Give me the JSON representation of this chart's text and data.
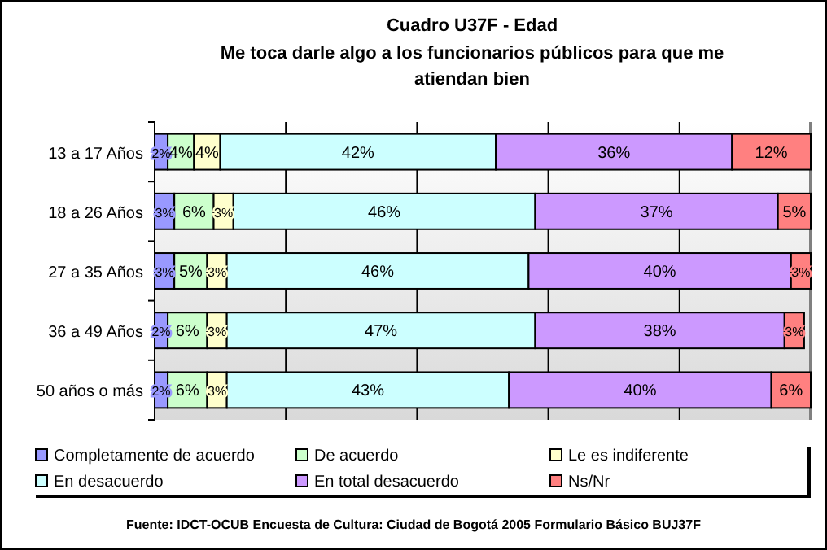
{
  "chart_data": {
    "type": "bar",
    "orientation": "horizontal",
    "stacked": true,
    "title": "Cuadro U37F - Edad",
    "subtitle": "Me toca darle algo a los funcionarios públicos para que me atiendan bien",
    "categories": [
      "13 a 17 Años",
      "18 a 26 Años",
      "27 a 35 Años",
      "36 a 49 Años",
      "50 años o más"
    ],
    "series": [
      {
        "name": "Completamente de acuerdo",
        "color": "#9999ff",
        "values": [
          2,
          3,
          3,
          2,
          2
        ],
        "value_labels": [
          "2%",
          "3%",
          "3%",
          "2%",
          "2%"
        ]
      },
      {
        "name": "De acuerdo",
        "color": "#ccffcc",
        "values": [
          4,
          6,
          5,
          6,
          6
        ],
        "value_labels": [
          "4%",
          "6%",
          "5%",
          "6%",
          "6%"
        ]
      },
      {
        "name": "Le es indiferente",
        "color": "#ffffcc",
        "values": [
          4,
          3,
          3,
          3,
          3
        ],
        "value_labels": [
          "4%",
          "3%",
          "3%",
          "3%",
          "3%"
        ]
      },
      {
        "name": "En desacuerdo",
        "color": "#ccffff",
        "values": [
          42,
          46,
          46,
          47,
          43
        ],
        "value_labels": [
          "42%",
          "46%",
          "46%",
          "47%",
          "43%"
        ]
      },
      {
        "name": "En total desacuerdo",
        "color": "#cc99ff",
        "values": [
          36,
          37,
          40,
          38,
          40
        ],
        "value_labels": [
          "36%",
          "37%",
          "40%",
          "38%",
          "40%"
        ]
      },
      {
        "name": "Ns/Nr",
        "color": "#ff8080",
        "values": [
          12,
          5,
          3,
          3,
          6
        ],
        "value_labels": [
          "12%",
          "5%",
          "3%",
          "3%",
          "6%"
        ]
      }
    ],
    "xlim": [
      0,
      100
    ],
    "xticks": [
      {
        "value": 0,
        "label": null
      },
      {
        "value": 20,
        "label": null
      },
      {
        "value": 40,
        "label": null
      },
      {
        "value": 60,
        "label": null
      },
      {
        "value": 80,
        "label": null
      },
      {
        "value": 100,
        "label": null
      }
    ],
    "tick_labels": "y",
    "grid": "x",
    "legend": "bottom",
    "data_labels": true,
    "annotations": [
      "Fuente: IDCT-OCUB Encuesta de Cultura: Ciudad de Bogotá 2005 Formulario Básico BUJ37F"
    ]
  }
}
